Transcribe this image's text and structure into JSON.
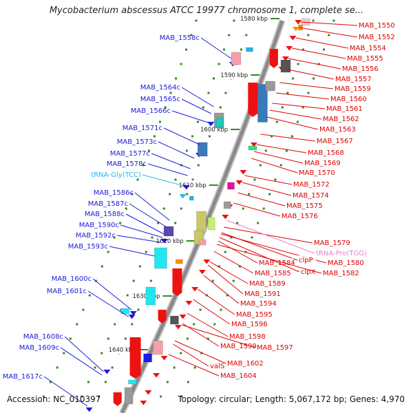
{
  "title": "Mycobacterium abscessus ATCC 19977 chromosome 1, complete se...",
  "accession": "Accession: NC_010397",
  "topology": "Topology: circular; Length: 5,067,172 bp; Genes: 4,970",
  "colors": {
    "left_label": "#1a1adb",
    "right_label": "#dd0000",
    "trna_left": "#29b6e6",
    "trna_right": "#f07ec0",
    "backbone": "#8a8a8a",
    "tick_dot": "#2e8b1f"
  },
  "kbp_ticks": [
    "1580 kbp",
    "1590 kbp",
    "1600 kbp",
    "1610 kbp",
    "1620 kbp",
    "1630 kbp",
    "1640 kbp"
  ],
  "left_labels": [
    "MAB_1558c",
    "MAB_1564c",
    "MAB_1565c",
    "MAB_1566c",
    "MAB_1571c",
    "MAB_1573c",
    "MAB_1577c",
    "MAB_1578c",
    "tRNA-Gly(TCC)",
    "MAB_1586c",
    "MAB_1587c",
    "MAB_1588c",
    "MAB_1590c",
    "MAB_1592c",
    "MAB_1593c",
    "MAB_1600c",
    "MAB_1601c",
    "MAB_1608c",
    "MAB_1609c",
    "MAB_1617c"
  ],
  "right_labels": [
    "MAB_1550",
    "MAB_1552",
    "MAB_1554",
    "MAB_1555",
    "MAB_1556",
    "MAB_1557",
    "MAB_1559",
    "MAB_1560",
    "MAB_1561",
    "MAB_1562",
    "MAB_1563",
    "MAB_1567",
    "MAB_1568",
    "MAB_1569",
    "MAB_1570",
    "MAB_1572",
    "MAB_1574",
    "MAB_1575",
    "MAB_1576",
    "MAB_1579",
    "tRNA-Pro(TGG)",
    "MAB_1580",
    "clpP",
    "MAB_1584",
    "clpX",
    "MAB_1582",
    "MAB_1585",
    "MAB_1589",
    "MAB_1591",
    "MAB_1594",
    "MAB_1595",
    "MAB_1596",
    "MAB_1598",
    "MAB_1599",
    "MAB_1597",
    "valS",
    "MAB_1602",
    "MAB_1604"
  ]
}
